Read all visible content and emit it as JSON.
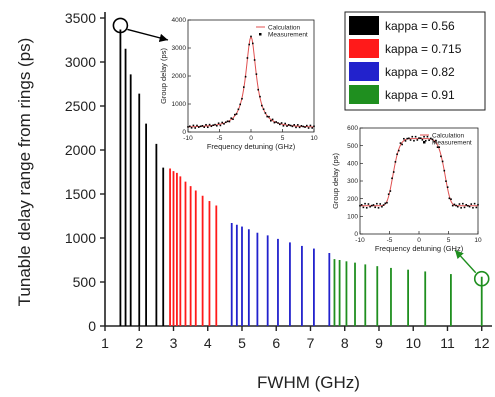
{
  "chart_data": [
    {
      "type": "bar",
      "xlabel": "FWHM (GHz)",
      "ylabel": "Tunable delay range from rings (ps)",
      "xlim": [
        1,
        12.3
      ],
      "ylim": [
        0,
        3500
      ],
      "xticks": [
        1,
        2,
        3,
        4,
        5,
        6,
        7,
        8,
        9,
        10,
        11,
        12
      ],
      "yticks": [
        0,
        500,
        1000,
        1500,
        2000,
        2500,
        3000,
        3500
      ],
      "legend_position": "top-right",
      "series": [
        {
          "name": "kappa = 0.56",
          "color": "#000000",
          "x": [
            1.45,
            1.6,
            1.75,
            2.0,
            2.2,
            2.5,
            2.7
          ],
          "values": [
            3370,
            3150,
            2860,
            2640,
            2300,
            2070,
            1800
          ]
        },
        {
          "name": "kappa = 0.715",
          "color": "#ff1a1a",
          "x": [
            2.9,
            3.0,
            3.1,
            3.2,
            3.35,
            3.5,
            3.65,
            3.85,
            4.05,
            4.25
          ],
          "values": [
            1790,
            1760,
            1740,
            1700,
            1640,
            1590,
            1540,
            1480,
            1420,
            1370
          ]
        },
        {
          "name": "kappa = 0.82",
          "color": "#2222cc",
          "x": [
            4.7,
            4.85,
            5.0,
            5.2,
            5.45,
            5.75,
            6.05,
            6.4,
            6.75,
            7.1,
            7.55
          ],
          "values": [
            1170,
            1150,
            1130,
            1100,
            1060,
            1030,
            990,
            950,
            910,
            880,
            830
          ]
        },
        {
          "name": "kappa = 0.91",
          "color": "#1f8f1f",
          "x": [
            7.7,
            7.85,
            8.05,
            8.3,
            8.6,
            8.95,
            9.35,
            9.85,
            10.35,
            11.1,
            12.0
          ],
          "values": [
            760,
            750,
            735,
            720,
            700,
            680,
            660,
            640,
            620,
            590,
            560
          ]
        }
      ],
      "highlight_points": [
        {
          "x": 1.45,
          "y": 3370
        },
        {
          "x": 12.0,
          "y": 560
        }
      ]
    },
    {
      "type": "line",
      "xlabel": "Frequency detuning (GHz)",
      "ylabel": "Group delay (ps)",
      "xlim": [
        -10,
        10
      ],
      "ylim": [
        0,
        4000
      ],
      "xticks": [
        -10,
        -5,
        0,
        5,
        10
      ],
      "yticks": [
        0,
        1000,
        2000,
        3000,
        4000
      ],
      "series": [
        {
          "name": "Calculation",
          "color": "#e05050",
          "style": "line"
        },
        {
          "name": "Measurement",
          "color": "#000000",
          "style": "points"
        }
      ]
    },
    {
      "type": "line",
      "xlabel": "Frequency detuning (GHz)",
      "ylabel": "Group delay (ps)",
      "xlim": [
        -10,
        10
      ],
      "ylim": [
        0,
        600
      ],
      "xticks": [
        -10,
        -5,
        0,
        5,
        10
      ],
      "yticks": [
        0,
        100,
        200,
        300,
        400,
        500,
        600
      ],
      "series": [
        {
          "name": "Calculation",
          "color": "#e05050",
          "style": "line"
        },
        {
          "name": "Measurement",
          "color": "#000000",
          "style": "points"
        }
      ]
    }
  ]
}
